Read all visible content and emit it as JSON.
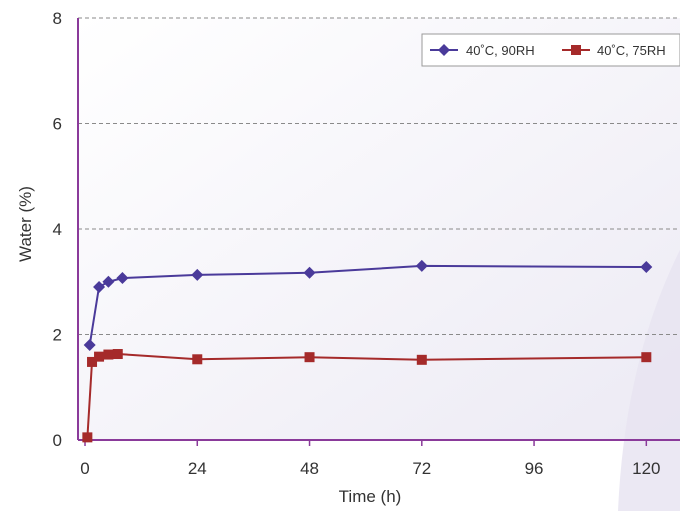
{
  "chart_data": {
    "type": "line",
    "title": "",
    "xlabel": "Time (h)",
    "ylabel": "Water (%)",
    "xlim": [
      0,
      120
    ],
    "ylim": [
      0,
      8
    ],
    "xticks": [
      0,
      24,
      48,
      72,
      96,
      120
    ],
    "yticks": [
      0,
      2,
      4,
      6,
      8
    ],
    "grid": "horizontal dashed",
    "legend_position": "top-right",
    "series": [
      {
        "name": "40˚C, 90RH",
        "color": "#4a3a9a",
        "marker": "diamond",
        "points": [
          {
            "x": 1,
            "y": 1.8
          },
          {
            "x": 3,
            "y": 2.9
          },
          {
            "x": 5,
            "y": 3.0
          },
          {
            "x": 8,
            "y": 3.07
          },
          {
            "x": 24,
            "y": 3.13
          },
          {
            "x": 48,
            "y": 3.17
          },
          {
            "x": 72,
            "y": 3.3
          },
          {
            "x": 120,
            "y": 3.28
          }
        ]
      },
      {
        "name": "40˚C, 75RH",
        "color": "#a52a2a",
        "marker": "square",
        "points": [
          {
            "x": 0.5,
            "y": 0.05
          },
          {
            "x": 1.5,
            "y": 1.48
          },
          {
            "x": 3,
            "y": 1.58
          },
          {
            "x": 5,
            "y": 1.62
          },
          {
            "x": 7,
            "y": 1.63
          },
          {
            "x": 24,
            "y": 1.53
          },
          {
            "x": 48,
            "y": 1.57
          },
          {
            "x": 72,
            "y": 1.52
          },
          {
            "x": 120,
            "y": 1.57
          }
        ]
      }
    ]
  }
}
